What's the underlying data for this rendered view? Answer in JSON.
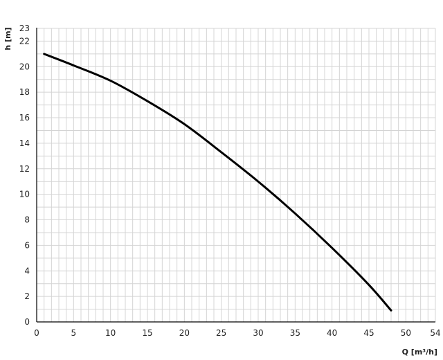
{
  "chart_data": {
    "type": "line",
    "title": "",
    "xlabel": "Q [m³/h]",
    "ylabel": "h [m]",
    "xlim": [
      0,
      54
    ],
    "ylim": [
      0,
      23
    ],
    "xticks": [
      0,
      5,
      10,
      15,
      20,
      25,
      30,
      35,
      40,
      45,
      50,
      54
    ],
    "yticks": [
      0,
      2,
      4,
      6,
      8,
      10,
      12,
      14,
      16,
      18,
      20,
      22,
      23
    ],
    "grid": true,
    "grid_step": {
      "x": 1,
      "y": 1
    },
    "colors": {
      "line": "#000000",
      "grid": "#d4d4d4",
      "axis": "#000000"
    },
    "series": [
      {
        "x": [
          1,
          5,
          10,
          15,
          20,
          25,
          30,
          35,
          40,
          45,
          48
        ],
        "y": [
          21.0,
          20.1,
          18.9,
          17.3,
          15.5,
          13.3,
          11.0,
          8.5,
          5.8,
          2.9,
          0.9
        ]
      }
    ]
  }
}
